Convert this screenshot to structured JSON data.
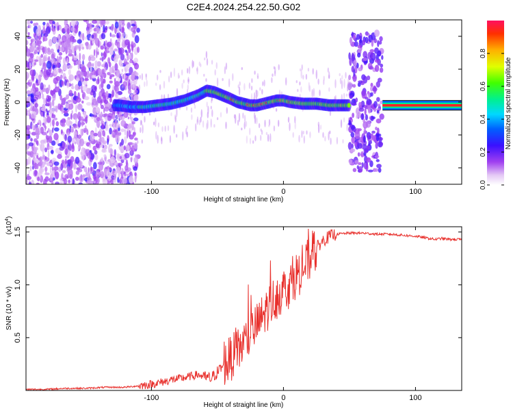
{
  "title": "C2E4.2024.254.22.50.G02",
  "chart_data": [
    {
      "type": "heatmap",
      "xlabel": "Height of straight line (km)",
      "ylabel": "Frequency (Hz)",
      "xlim": [
        -195,
        135
      ],
      "ylim": [
        -50,
        50
      ],
      "x_ticks": [
        -100,
        0,
        100
      ],
      "y_ticks": [
        -40,
        -20,
        0,
        20,
        40
      ],
      "colorbar": {
        "label": "Normalized spectral amplitude",
        "range": [
          0,
          1
        ],
        "ticks": [
          0.0,
          0.2,
          0.4,
          0.6,
          0.8
        ],
        "colormap": "rainbow (white-violet-blue-cyan-green-yellow-red)"
      },
      "ridge": {
        "x": [
          -125,
          -115,
          -105,
          -95,
          -85,
          -75,
          -65,
          -58,
          -52,
          -46,
          -40,
          -35,
          -30,
          -25,
          -20,
          -15,
          -10,
          -5,
          0,
          5,
          15,
          25,
          35,
          45,
          50
        ],
        "frequency": [
          -2,
          -3,
          -3,
          -2,
          -1,
          1,
          4,
          7,
          6,
          4,
          2,
          0,
          -1,
          -2,
          -2,
          -1,
          0,
          1,
          1,
          0,
          -1,
          -1,
          -2,
          -2,
          -2
        ]
      },
      "tone_segment": {
        "x_range": [
          75,
          135
        ],
        "frequency": -2,
        "amplitude": 0.95
      }
    },
    {
      "type": "line",
      "xlabel": "Height of straight line (km)",
      "ylabel": "SNR (10 * v/v)",
      "y_multiplier": "(x10",
      "y_multiplier_exp": "4",
      "xlim": [
        -195,
        135
      ],
      "ylim": [
        0,
        1.55
      ],
      "x_ticks": [
        -100,
        0,
        100
      ],
      "y_ticks": [
        0.5,
        1.0,
        1.5
      ],
      "y_tick_labels": [
        "0.5",
        "1.0",
        "1.5"
      ],
      "line_color": "#e8302c",
      "series": [
        {
          "x": [
            -195,
            -180,
            -165,
            -150,
            -135,
            -120,
            -105,
            -95,
            -85,
            -75,
            -65,
            -55,
            -48,
            -42,
            -36,
            -30,
            -24,
            -18,
            -12,
            -6,
            0,
            5,
            10,
            15,
            20,
            25,
            30,
            35,
            40,
            50,
            60,
            70,
            80,
            90,
            100,
            110,
            115,
            120,
            125,
            135
          ],
          "values": [
            0.01,
            0.01,
            0.02,
            0.02,
            0.03,
            0.03,
            0.05,
            0.07,
            0.1,
            0.12,
            0.15,
            0.11,
            0.2,
            0.28,
            0.35,
            0.45,
            0.55,
            0.65,
            0.78,
            0.88,
            0.95,
            1.0,
            1.1,
            1.15,
            1.25,
            1.35,
            1.42,
            1.46,
            1.48,
            1.49,
            1.49,
            1.48,
            1.48,
            1.47,
            1.46,
            1.44,
            1.43,
            1.44,
            1.43,
            1.43
          ]
        }
      ]
    }
  ]
}
